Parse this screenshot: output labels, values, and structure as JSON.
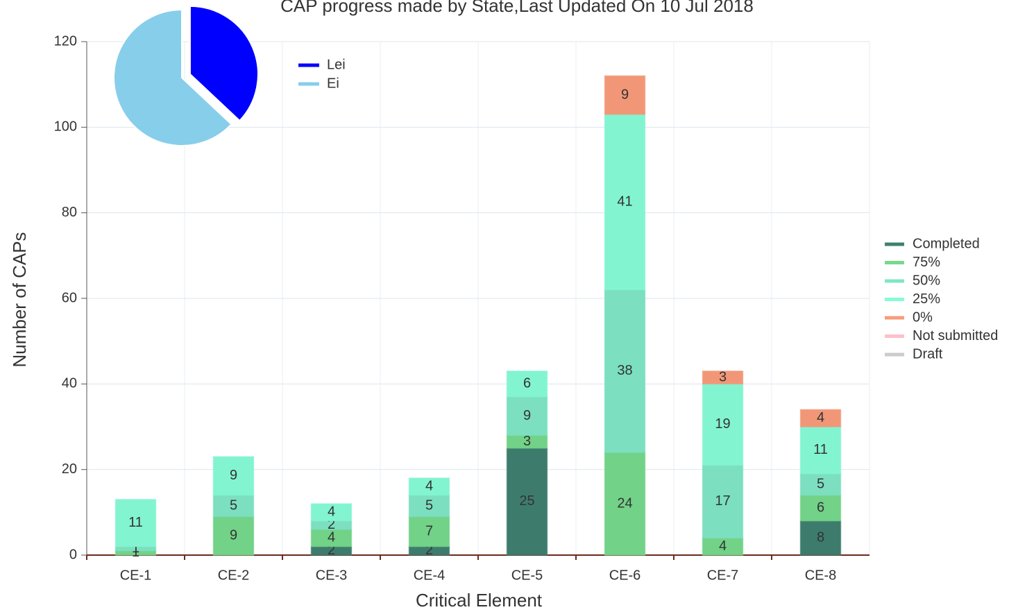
{
  "chart_data": [
    {
      "type": "bar",
      "stacked": true,
      "title": "CAP progress made by State,Last Updated On 10 Jul 2018",
      "x_label": "Critical Element",
      "y_label": "Number of CAPs",
      "categories": [
        "CE-1",
        "CE-2",
        "CE-3",
        "CE-4",
        "CE-5",
        "CE-6",
        "CE-7",
        "CE-8"
      ],
      "series": [
        {
          "name": "Completed",
          "color": "#3f8070",
          "values": [
            null,
            null,
            2,
            2,
            25,
            null,
            null,
            8
          ]
        },
        {
          "name": "75%",
          "color": "#76d98c",
          "values": [
            1,
            9,
            4,
            7,
            3,
            24,
            4,
            6
          ]
        },
        {
          "name": "50%",
          "color": "#7fe6c6",
          "values": [
            1,
            5,
            2,
            5,
            9,
            38,
            17,
            5
          ]
        },
        {
          "name": "25%",
          "color": "#86fcd6",
          "values": [
            11,
            9,
            4,
            4,
            6,
            41,
            19,
            11
          ]
        },
        {
          "name": "0%",
          "color": "#f89c7c",
          "values": [
            null,
            null,
            null,
            null,
            null,
            9,
            3,
            4
          ]
        },
        {
          "name": "Not submitted",
          "color": "#ffc0cb",
          "values": [
            null,
            null,
            null,
            null,
            null,
            null,
            null,
            null
          ]
        },
        {
          "name": "Draft",
          "color": "#cccccc",
          "values": [
            null,
            null,
            null,
            null,
            null,
            null,
            null,
            null
          ]
        }
      ],
      "ylim": [
        0,
        120
      ],
      "yticks": [
        0,
        20,
        40,
        60,
        80,
        100,
        120
      ],
      "grid": true,
      "legend": "right"
    },
    {
      "type": "pie",
      "categories": [
        "Lei",
        "Ei"
      ],
      "values": [
        37,
        63
      ],
      "colors": [
        "#0000ff",
        "#87ceeb"
      ],
      "legend": "right"
    }
  ]
}
